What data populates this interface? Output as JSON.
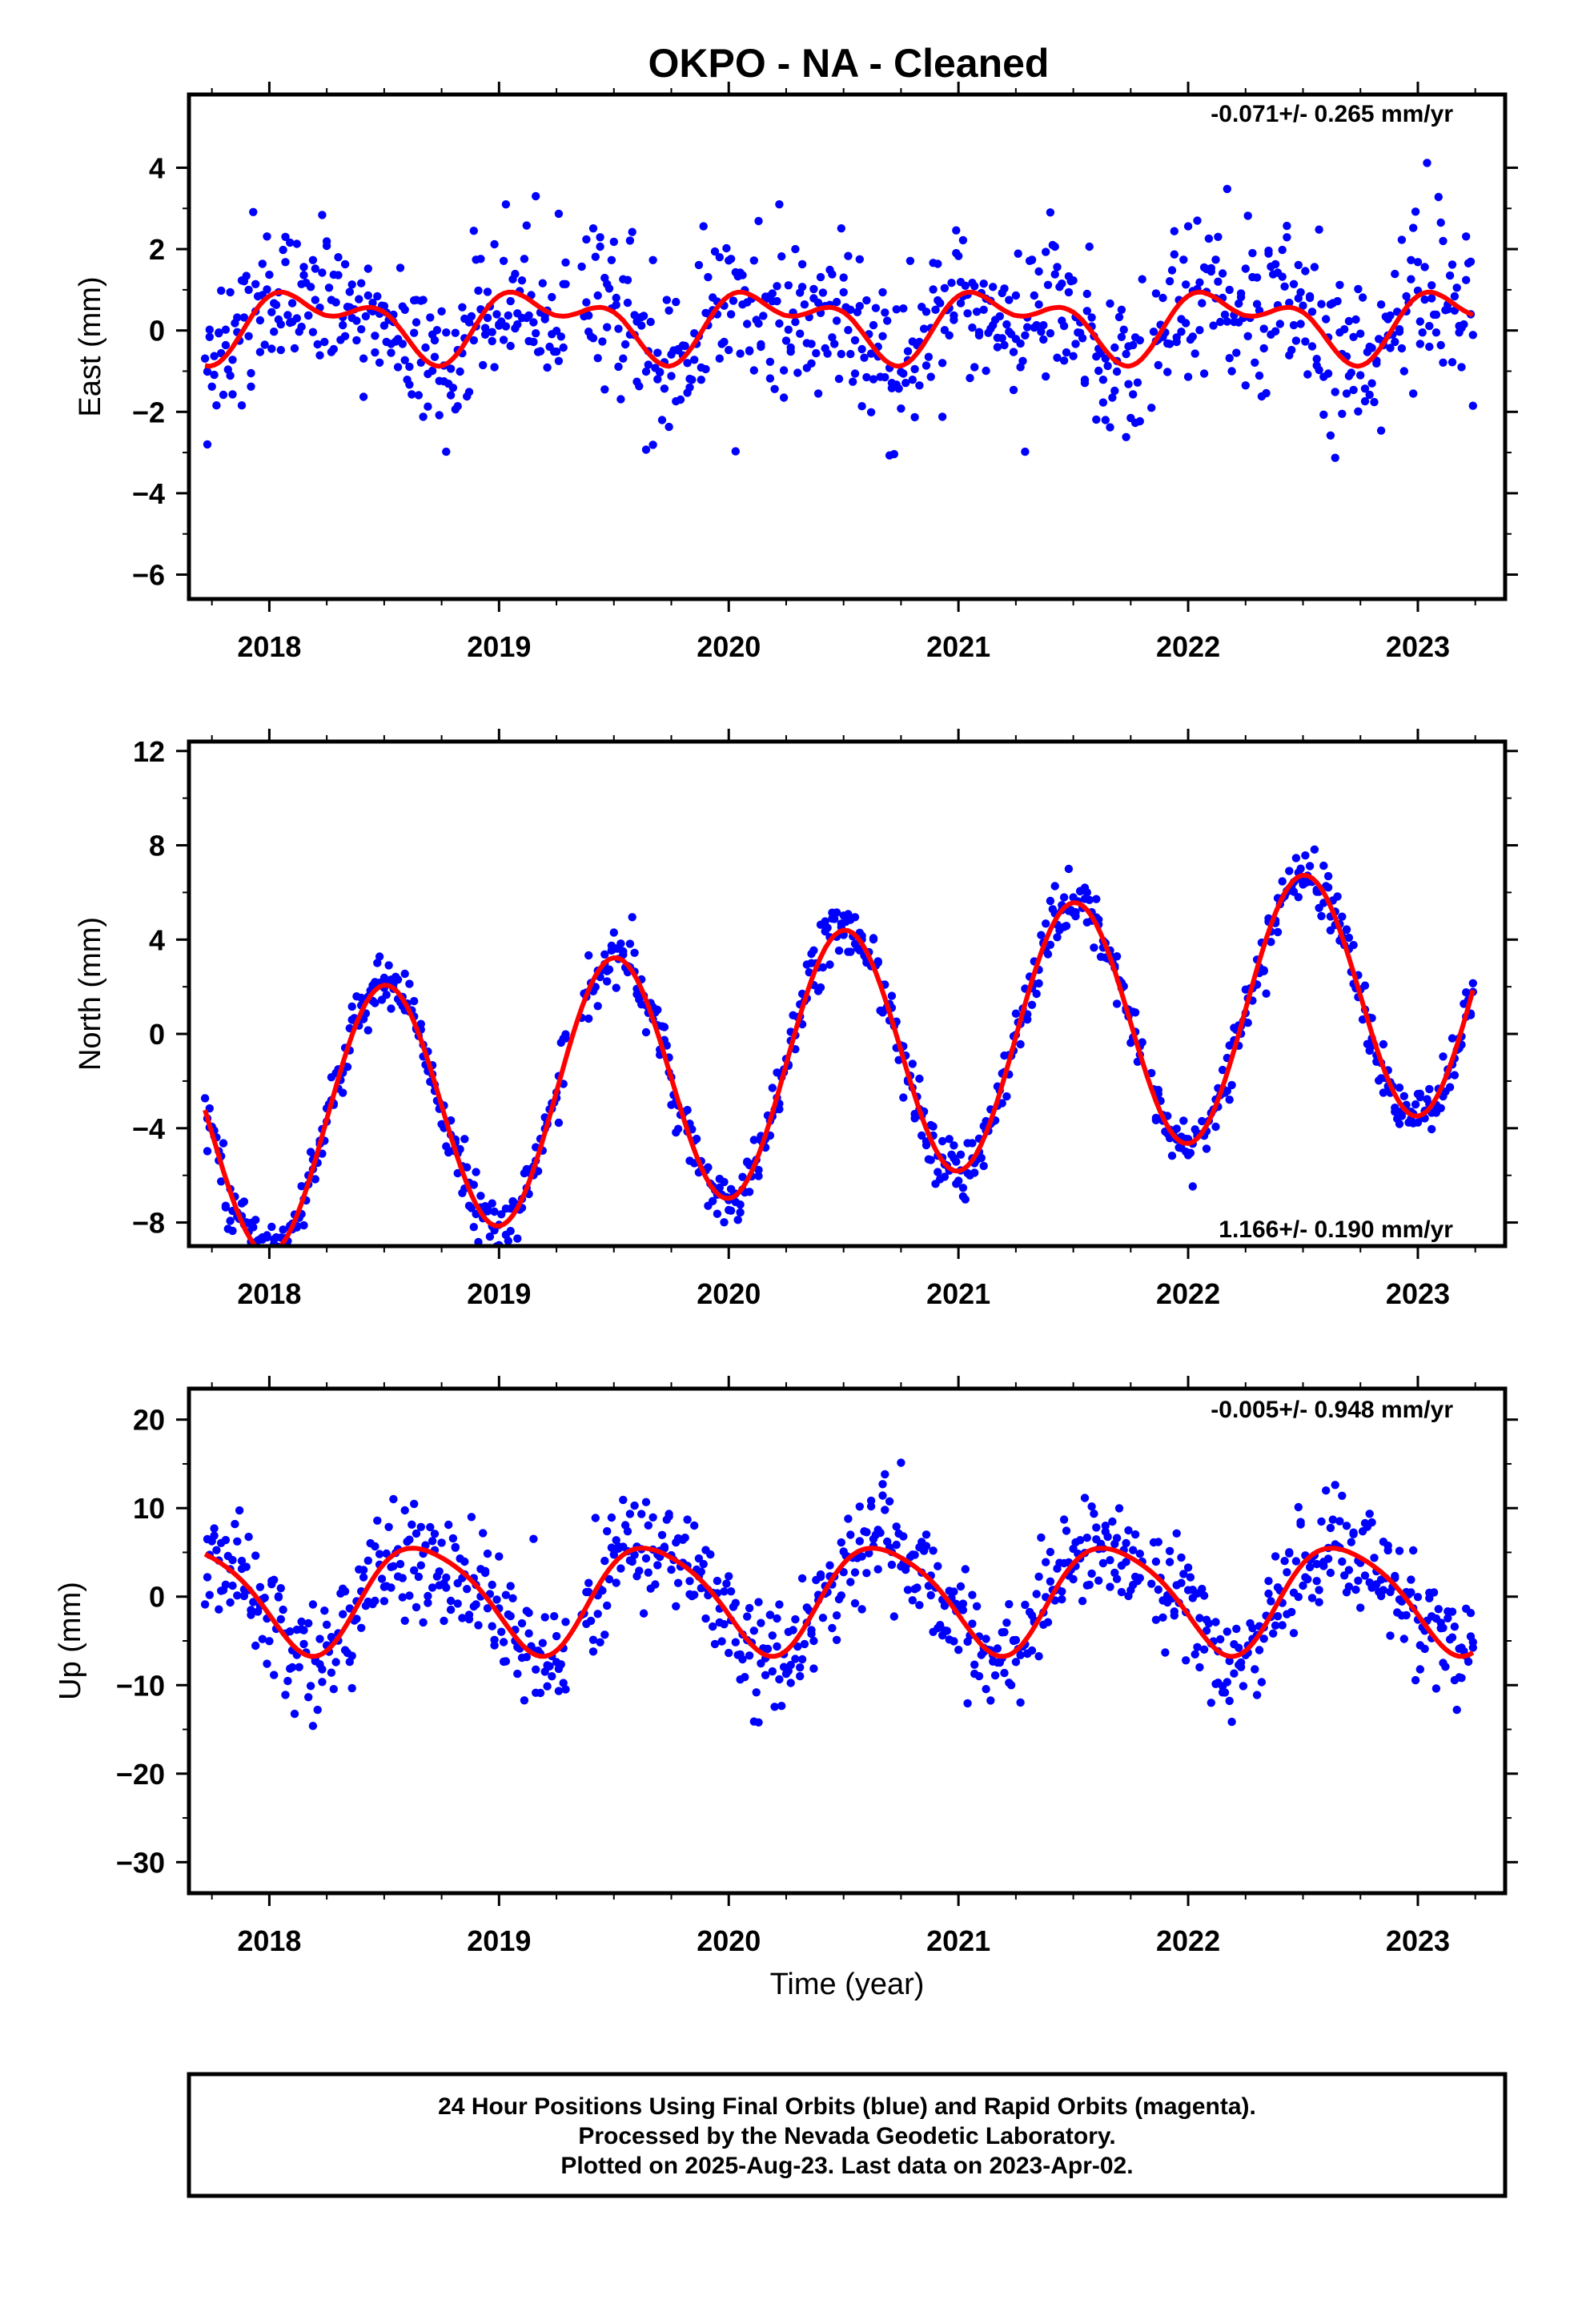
{
  "title": "OKPO  - NA - Cleaned",
  "colors": {
    "points": "#0000ff",
    "fit": "#ff0000",
    "frame": "#000000"
  },
  "chart_data": [
    {
      "type": "scatter",
      "ylabel": "East (mm)",
      "xlabel": "",
      "rate": "-0.071+/- 0.265 mm/yr",
      "rate_position": "top-right",
      "xlim": [
        2017.65,
        2023.38
      ],
      "ylim": [
        -6.6,
        5.8
      ],
      "x_ticks": [
        "2018",
        "2019",
        "2020",
        "2021",
        "2022",
        "2023"
      ],
      "y_ticks": [
        "4",
        "2",
        "0",
        "−2",
        "−4",
        "−6"
      ],
      "series": [
        {
          "style": "points",
          "color": "#0000ff",
          "x": [],
          "y": []
        },
        {
          "style": "line",
          "color": "#ff0000",
          "x": [],
          "y": []
        }
      ]
    },
    {
      "type": "scatter",
      "ylabel": "North (mm)",
      "xlabel": "",
      "rate": "1.166+/- 0.190 mm/yr",
      "rate_position": "bottom-right",
      "xlim": [
        2017.65,
        2023.38
      ],
      "ylim": [
        -9.0,
        12.4
      ],
      "x_ticks": [
        "2018",
        "2019",
        "2020",
        "2021",
        "2022",
        "2023"
      ],
      "y_ticks": [
        "12",
        "8",
        "4",
        "0",
        "−4",
        "−8"
      ],
      "series": [
        {
          "style": "points",
          "color": "#0000ff",
          "x": [],
          "y": []
        },
        {
          "style": "line",
          "color": "#ff0000",
          "x": [],
          "y": []
        }
      ]
    },
    {
      "type": "scatter",
      "ylabel": "Up (mm)",
      "xlabel": "Time (year)",
      "rate": "-0.005+/- 0.948 mm/yr",
      "rate_position": "top-right",
      "xlim": [
        2017.65,
        2023.38
      ],
      "ylim": [
        -33.5,
        23.5
      ],
      "x_ticks": [
        "2018",
        "2019",
        "2020",
        "2021",
        "2022",
        "2023"
      ],
      "y_ticks": [
        "20",
        "10",
        "0",
        "−10",
        "−20",
        "−30"
      ],
      "series": [
        {
          "style": "points",
          "color": "#0000ff",
          "x": [],
          "y": []
        },
        {
          "style": "line",
          "color": "#ff0000",
          "x": [],
          "y": []
        }
      ]
    }
  ],
  "footer": {
    "line1": "24 Hour Positions Using Final Orbits (blue) and Rapid Orbits (magenta).",
    "line2": "Processed by the Nevada Geodetic Laboratory.",
    "line3": "Plotted on 2025-Aug-23. Last data on 2023-Apr-02."
  }
}
